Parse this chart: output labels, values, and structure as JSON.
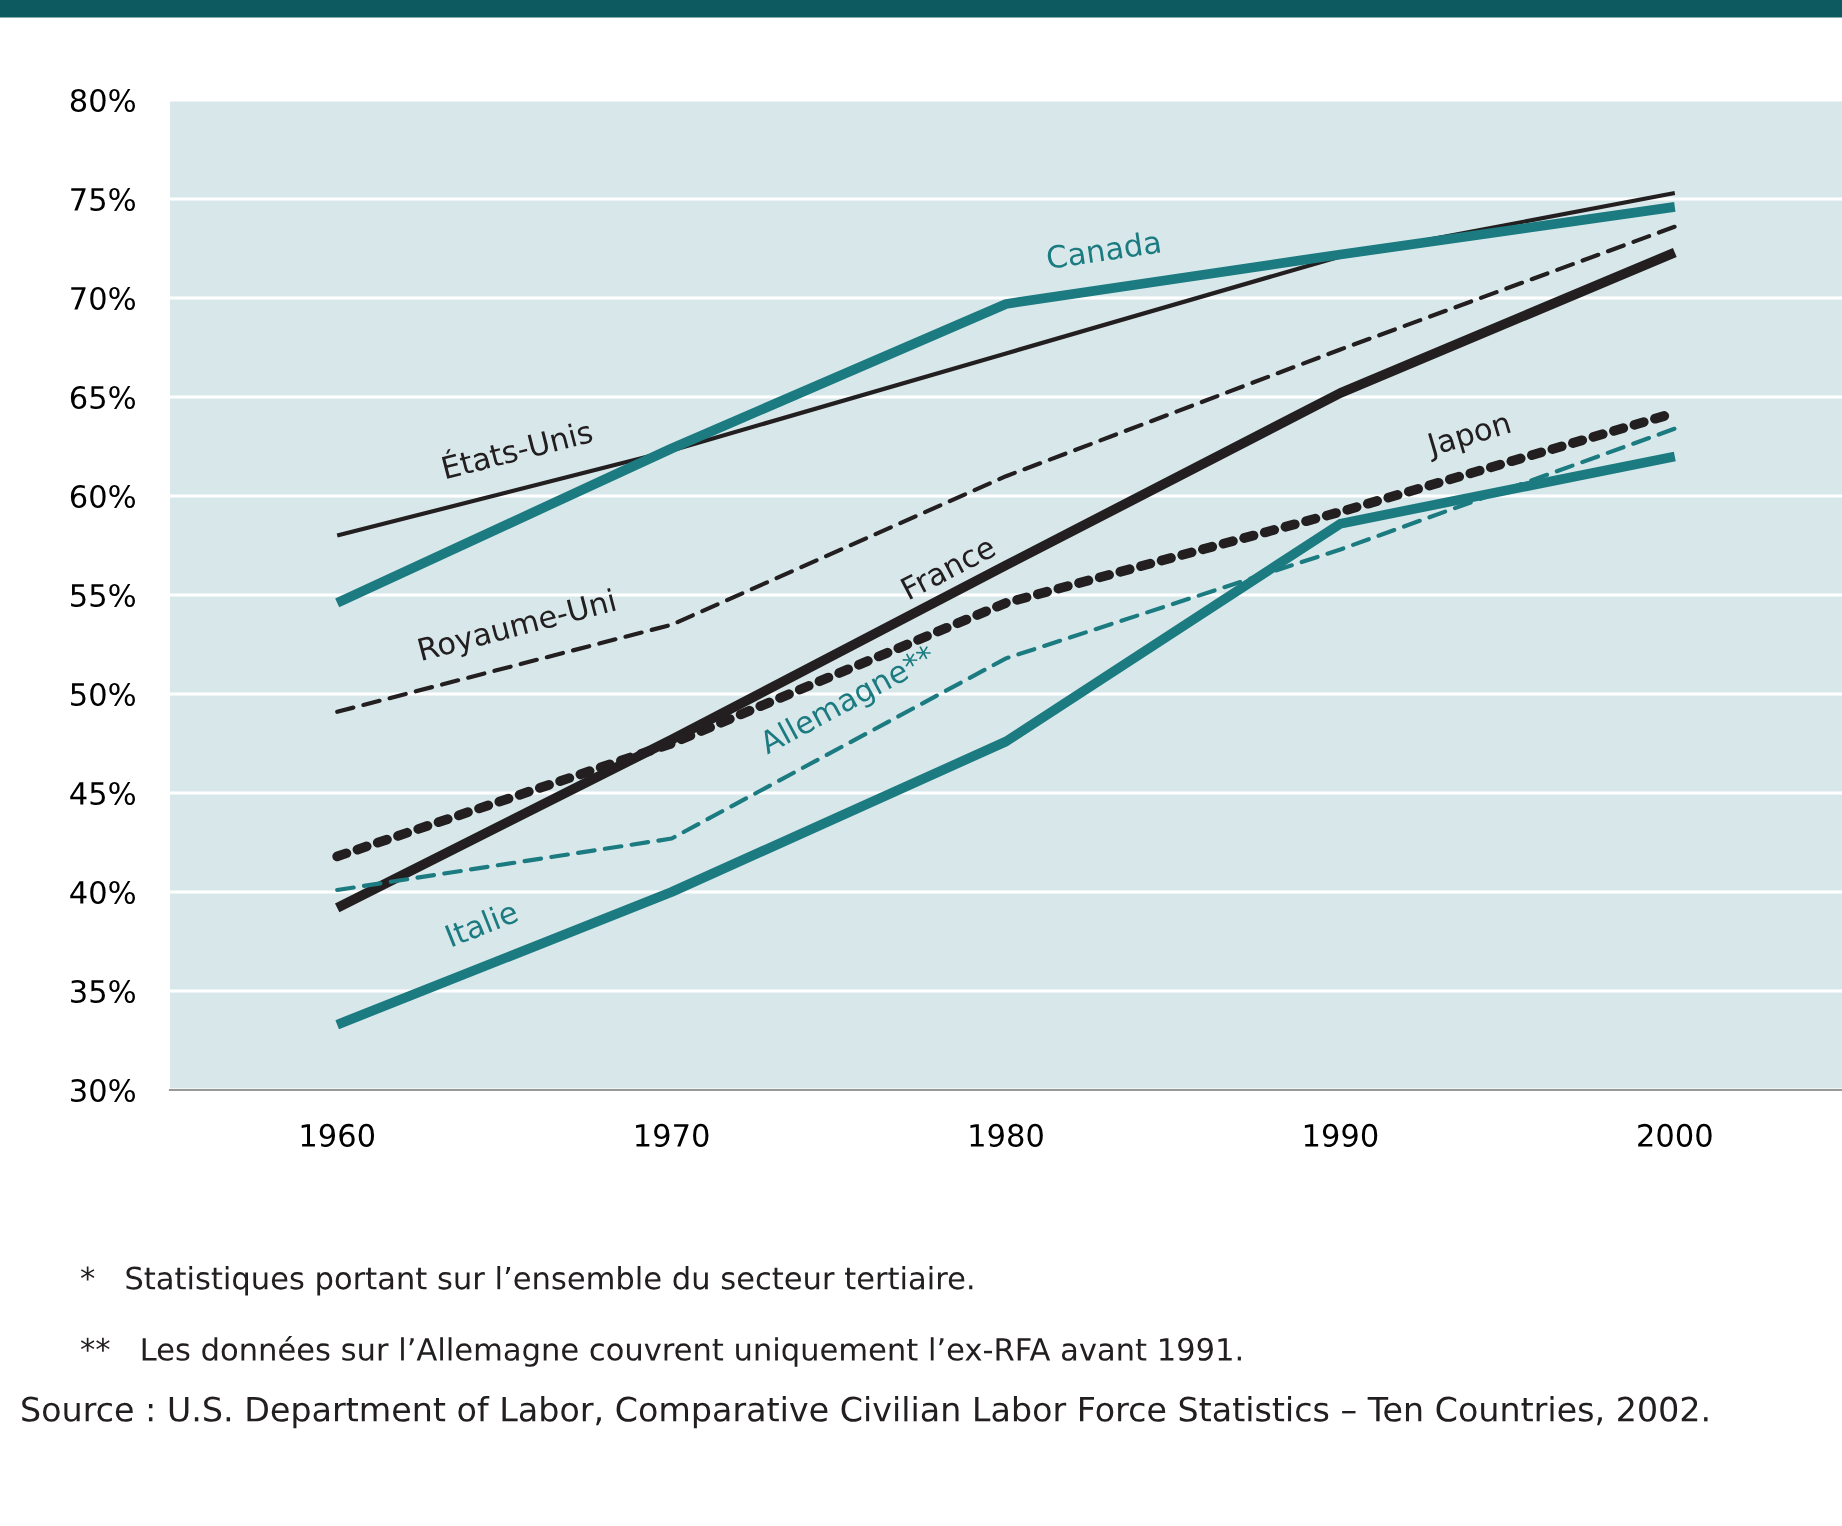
{
  "chart_data": {
    "type": "line",
    "x": [
      1960,
      1970,
      1980,
      1990,
      2000
    ],
    "series": [
      {
        "name": "États-Unis",
        "color": "#231f20",
        "values": [
          58.0,
          62.3,
          67.2,
          72.1,
          75.3
        ],
        "line_style": "solid"
      },
      {
        "name": "Canada",
        "color": "#1b7b80",
        "values": [
          54.6,
          62.4,
          69.7,
          72.2,
          74.6
        ],
        "line_style": "solid"
      },
      {
        "name": "Royaume-Uni",
        "color": "#231f20",
        "values": [
          49.1,
          53.5,
          61.0,
          67.4,
          73.6
        ],
        "line_style": "dashed"
      },
      {
        "name": "France",
        "color": "#231f20",
        "values": [
          39.2,
          47.7,
          56.5,
          65.2,
          72.3
        ],
        "line_style": "solid"
      },
      {
        "name": "Japon",
        "color": "#231f20",
        "values": [
          41.8,
          47.5,
          54.6,
          59.2,
          64.2
        ],
        "line_style": "dotted"
      },
      {
        "name": "Allemagne**",
        "color": "#1b7b80",
        "values": [
          40.1,
          42.7,
          51.8,
          57.3,
          63.4
        ],
        "line_style": "dashed"
      },
      {
        "name": "Italie",
        "color": "#1b7b80",
        "values": [
          33.3,
          40.0,
          47.6,
          58.6,
          62.0
        ],
        "line_style": "solid"
      }
    ],
    "xlim": [
      1955,
      2005
    ],
    "xticks": [
      1960,
      1970,
      1980,
      1990,
      2000
    ],
    "ylim": [
      30,
      80
    ],
    "yticks": [
      {
        "value": 30,
        "label": "30%"
      },
      {
        "value": 35,
        "label": "35%"
      },
      {
        "value": 40,
        "label": "40%"
      },
      {
        "value": 45,
        "label": "45%"
      },
      {
        "value": 50,
        "label": "50%"
      },
      {
        "value": 55,
        "label": "55%"
      },
      {
        "value": 60,
        "label": "60%"
      },
      {
        "value": 65,
        "label": "65%"
      },
      {
        "value": 70,
        "label": "70%"
      },
      {
        "value": 75,
        "label": "75%"
      },
      {
        "value": 80,
        "label": "80%"
      }
    ],
    "grid": "y",
    "legend": false,
    "marker": "none",
    "annotations": [
      "*   Statistiques portant sur l’ensemble du secteur tertiaire.",
      "**   Les données sur l’Allemagne couvrent uniquement l’ex-RFA avant 1991.",
      "Source : U.S. Department of Labor, Comparative Civilian Labor Force Statistics – Ten Countries, 2002."
    ]
  }
}
